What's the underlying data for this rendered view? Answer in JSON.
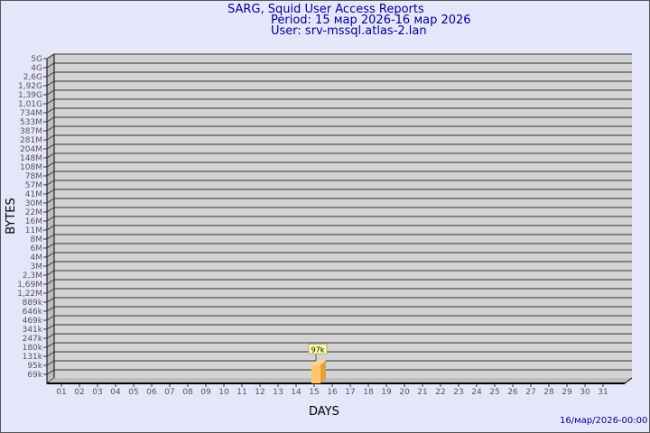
{
  "header": {
    "title": "SARG, Squid User Access Reports",
    "period": "Period: 15 мар 2026-16 мар 2026",
    "user": "User: srv-mssql.atlas-2.lan"
  },
  "footer": {
    "timestamp": "16/мар/2026-00:00"
  },
  "chart_data": {
    "type": "bar",
    "xlabel": "DAYS",
    "ylabel": "BYTES",
    "yscale": "log",
    "y_tick_labels": [
      "5G",
      "4G",
      "2,6G",
      "1,92G",
      "1,39G",
      "1,01G",
      "734M",
      "533M",
      "387M",
      "281M",
      "204M",
      "148M",
      "108M",
      "78M",
      "57M",
      "41M",
      "30M",
      "22M",
      "16M",
      "11M",
      "8M",
      "6M",
      "4M",
      "3M",
      "2,3M",
      "1,69M",
      "1,22M",
      "889k",
      "646k",
      "469k",
      "341k",
      "247k",
      "180k",
      "131k",
      "95k",
      "69k"
    ],
    "categories": [
      "01",
      "02",
      "03",
      "04",
      "05",
      "06",
      "07",
      "08",
      "09",
      "10",
      "11",
      "12",
      "13",
      "14",
      "15",
      "16",
      "17",
      "18",
      "19",
      "20",
      "21",
      "22",
      "23",
      "24",
      "25",
      "26",
      "27",
      "28",
      "29",
      "30",
      "31"
    ],
    "values": [
      {
        "day": "15",
        "value": 97000,
        "label": "97k"
      }
    ],
    "grid": true,
    "colors": {
      "plot": "#d3d3d3",
      "bar": "#ffc66e",
      "bar_side": "#e0a040",
      "background": "#e6e6fa",
      "title": "#00008b"
    }
  }
}
